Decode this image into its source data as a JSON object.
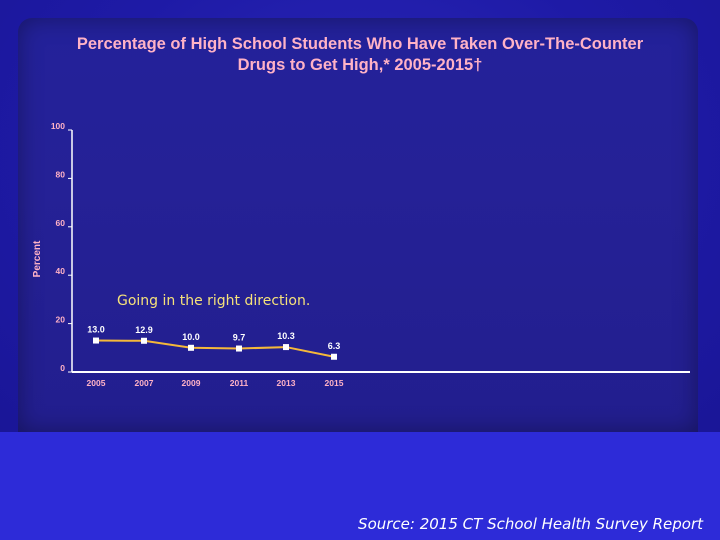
{
  "slide": {
    "title_line1": "Percentage of High School Students Who Have Taken Over-The-Counter",
    "title_line2": "Drugs to Get High,* 2005-2015†",
    "annotation": "Going in the right direction.",
    "source": "Source: 2015 CT School Health Survey Report"
  },
  "colors": {
    "background": "#1c18a3",
    "title": "#ffb2c6",
    "line": "#f5b83a",
    "axis": "#ffffff",
    "annotation": "#f6e27a"
  },
  "chart_data": {
    "type": "line",
    "title": "Percentage of High School Students Who Have Taken Over-The-Counter Drugs to Get High,* 2005-2015†",
    "xlabel": "",
    "ylabel": "Percent",
    "categories": [
      "2005",
      "2007",
      "2009",
      "2011",
      "2013",
      "2015"
    ],
    "series": [
      {
        "values": [
          13.0,
          12.9,
          10.0,
          9.7,
          10.3,
          6.3
        ]
      }
    ],
    "data_labels": [
      "13.0",
      "12.9",
      "10.0",
      "9.7",
      "10.3",
      "6.3"
    ],
    "ylim": [
      0,
      100
    ],
    "yticks": [
      "0",
      "20",
      "40",
      "60",
      "80",
      "100"
    ],
    "grid": false,
    "legend": "none"
  }
}
